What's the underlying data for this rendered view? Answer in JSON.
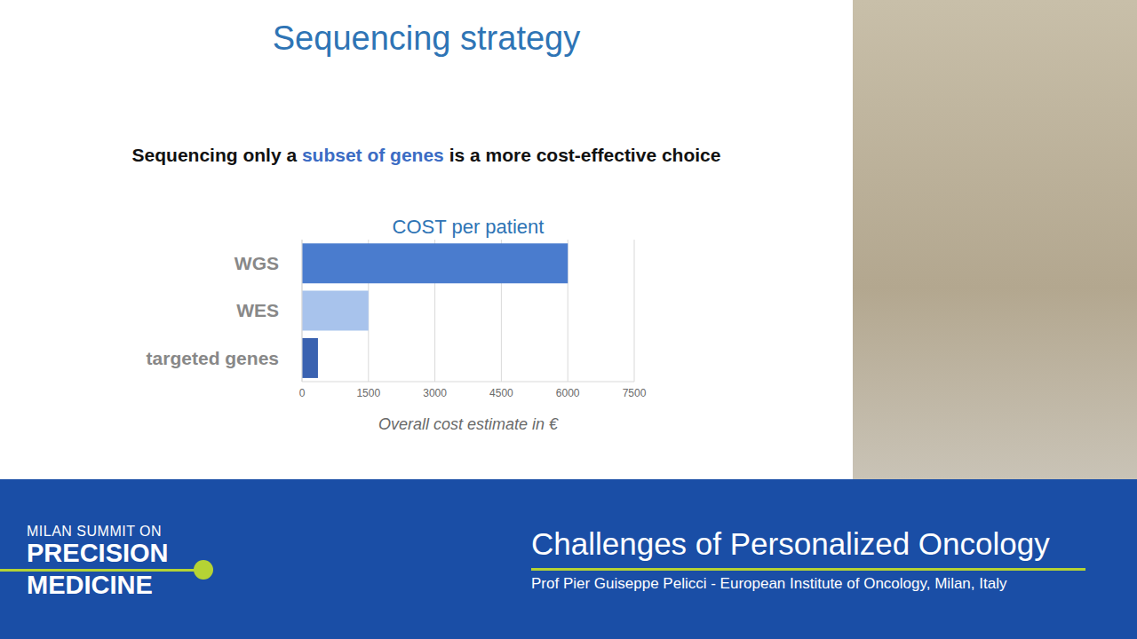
{
  "slide": {
    "title": "Sequencing strategy",
    "headline": "Sequencing only a subset of genes is a more cost-effective choice",
    "highlight": "subset of genes"
  },
  "chart_data": {
    "type": "bar",
    "orientation": "horizontal",
    "title": "COST per patient",
    "x_label": "Overall cost estimate in €",
    "categories": [
      "WGS",
      "WES",
      "targeted genes"
    ],
    "values": [
      6000,
      1500,
      360
    ],
    "colors": [
      "#4a7cce",
      "#a8c3ec",
      "#3a62b0"
    ],
    "xlim": [
      0,
      7500
    ],
    "xticks": [
      0,
      1500,
      3000,
      4500,
      6000,
      7500
    ],
    "grid": true
  },
  "banner": {
    "logo": [
      "MILAN SUMMIT ON",
      "PRECISION",
      "MEDICINE"
    ],
    "talk_title": "Challenges of Personalized Oncology",
    "speaker": "Prof Pier Guiseppe Pelicci - European Institute of Oncology, Milan, Italy"
  }
}
